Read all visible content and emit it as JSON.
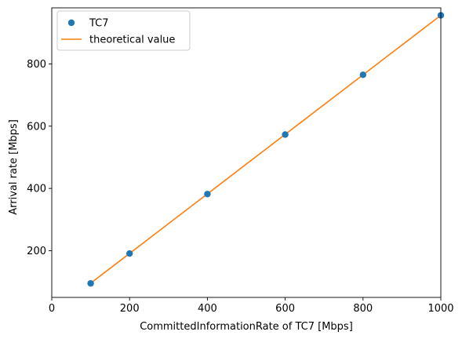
{
  "chart_data": {
    "type": "scatter",
    "xlabel": "CommittedInformationRate of TC7 [Mbps]",
    "ylabel": "Arrival rate [Mbps]",
    "xlim": [
      0,
      1000
    ],
    "ylim": [
      50,
      980
    ],
    "x_ticks": [
      0,
      200,
      400,
      600,
      800,
      1000
    ],
    "y_ticks": [
      200,
      400,
      600,
      800
    ],
    "grid": false,
    "legend_position": "top-left",
    "series": [
      {
        "name": "TC7",
        "kind": "scatter",
        "color": "#1f77b4",
        "x": [
          100,
          200,
          400,
          600,
          800,
          1000
        ],
        "y": [
          95,
          191,
          382,
          573,
          765,
          956
        ]
      },
      {
        "name": "theoretical value",
        "kind": "line",
        "color": "#ff7f0e",
        "x": [
          100,
          1000
        ],
        "y": [
          95.6,
          956
        ]
      }
    ]
  }
}
